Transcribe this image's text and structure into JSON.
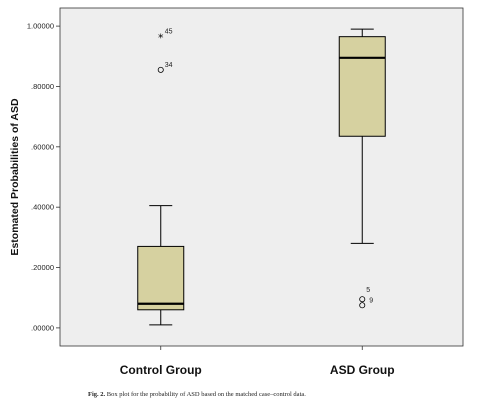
{
  "chart_data": {
    "type": "boxplot",
    "ylabel": "Estomated Probabilities of ASD",
    "ylim": [
      -0.06,
      1.06
    ],
    "yticks": [
      {
        "value": 0.0,
        "label": ".00000"
      },
      {
        "value": 0.2,
        "label": ".20000"
      },
      {
        "value": 0.4,
        "label": ".40000"
      },
      {
        "value": 0.6,
        "label": ".60000"
      },
      {
        "value": 0.8,
        "label": ".80000"
      },
      {
        "value": 1.0,
        "label": "1.00000"
      }
    ],
    "grid": false,
    "colors": {
      "box_fill": "#d6d1a0",
      "plot_bg": "#eeeeee",
      "median": "#000000"
    },
    "groups": [
      {
        "category": "Control Group",
        "whisker_low": 0.01,
        "q1": 0.06,
        "median": 0.08,
        "q3": 0.27,
        "whisker_high": 0.405,
        "outliers": [
          {
            "value": 0.855,
            "label": "34",
            "marker": "circle"
          },
          {
            "value": 0.965,
            "label": "45",
            "marker": "star"
          }
        ]
      },
      {
        "category": "ASD Group",
        "whisker_low": 0.28,
        "q1": 0.635,
        "median": 0.895,
        "q3": 0.965,
        "whisker_high": 0.99,
        "outliers": [
          {
            "value": 0.095,
            "label": "5",
            "marker": "circle"
          },
          {
            "value": 0.075,
            "label": "9",
            "marker": "circle"
          }
        ]
      }
    ]
  },
  "caption": {
    "label": "Fig. 2.",
    "text": "Box plot for the probability of ASD based on the matched case–control data."
  }
}
